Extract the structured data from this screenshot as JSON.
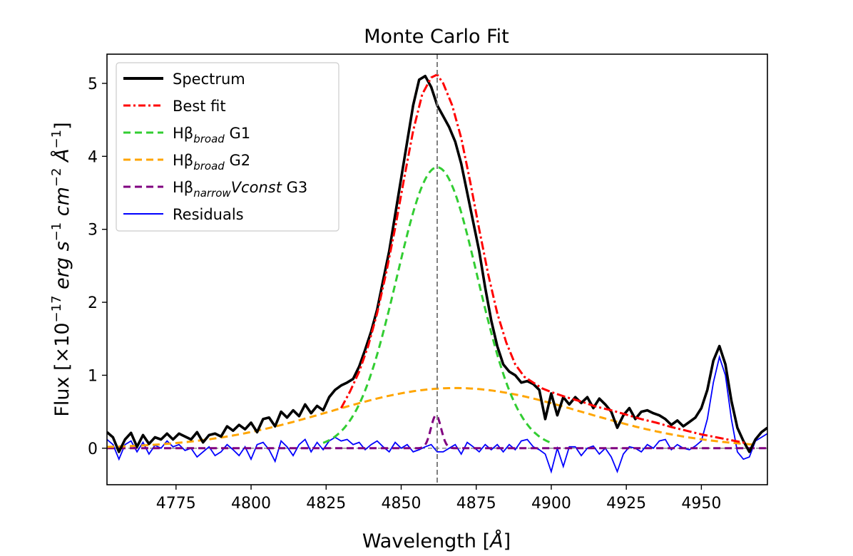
{
  "chart_data": {
    "type": "line",
    "title": "Monte Carlo Fit",
    "xlabel": "Wavelength [Å]",
    "ylabel": "Flux [×10⁻¹⁷ erg s⁻¹ cm⁻² Å⁻¹]",
    "xlim": [
      4752,
      4972
    ],
    "ylim": [
      -0.5,
      5.4
    ],
    "xticks": [
      4775,
      4800,
      4825,
      4850,
      4875,
      4900,
      4925,
      4950
    ],
    "yticks": [
      0,
      1,
      2,
      3,
      4,
      5
    ],
    "vline_x": 4862,
    "legend_position": "upper left",
    "legend": [
      {
        "id": "spectrum",
        "label": "Spectrum"
      },
      {
        "id": "best_fit",
        "label": "Best fit"
      },
      {
        "id": "g1",
        "label": "Hβ",
        "sub": "broad",
        "suffix": " G1"
      },
      {
        "id": "g2",
        "label": "Hβ",
        "sub": "broad",
        "suffix": " G2"
      },
      {
        "id": "g3",
        "label": "Hβ",
        "sub": "narrow",
        "ital": "Vconst",
        "suffix": " G3"
      },
      {
        "id": "residuals",
        "label": "Residuals"
      }
    ],
    "colors": {
      "spectrum": "#000000",
      "best_fit": "#ff0000",
      "g1": "#32cd32",
      "g2": "#ffa500",
      "g3": "#800080",
      "residuals": "#0000ff",
      "vline": "#808080",
      "zero_line": "#808080"
    },
    "spectrum": {
      "x": [
        4752,
        4754,
        4756,
        4758,
        4760,
        4762,
        4764,
        4766,
        4768,
        4770,
        4772,
        4774,
        4776,
        4778,
        4780,
        4782,
        4784,
        4786,
        4788,
        4790,
        4792,
        4794,
        4796,
        4798,
        4800,
        4802,
        4804,
        4806,
        4808,
        4810,
        4812,
        4814,
        4816,
        4818,
        4820,
        4822,
        4824,
        4826,
        4828,
        4830,
        4832,
        4834,
        4836,
        4838,
        4840,
        4842,
        4844,
        4846,
        4848,
        4850,
        4852,
        4854,
        4856,
        4858,
        4860,
        4862,
        4864,
        4866,
        4868,
        4870,
        4872,
        4874,
        4876,
        4878,
        4880,
        4882,
        4884,
        4886,
        4888,
        4890,
        4892,
        4894,
        4896,
        4898,
        4900,
        4902,
        4904,
        4906,
        4908,
        4910,
        4912,
        4914,
        4916,
        4918,
        4920,
        4922,
        4924,
        4926,
        4928,
        4930,
        4932,
        4934,
        4936,
        4938,
        4940,
        4942,
        4944,
        4946,
        4948,
        4950,
        4952,
        4954,
        4956,
        4958,
        4960,
        4962,
        4964,
        4966,
        4968,
        4970,
        4972
      ],
      "y": [
        0.22,
        0.15,
        -0.05,
        0.12,
        0.21,
        0.02,
        0.18,
        0.06,
        0.15,
        0.12,
        0.2,
        0.12,
        0.2,
        0.16,
        0.12,
        0.22,
        0.08,
        0.18,
        0.2,
        0.16,
        0.3,
        0.24,
        0.32,
        0.26,
        0.35,
        0.22,
        0.4,
        0.42,
        0.3,
        0.5,
        0.42,
        0.52,
        0.44,
        0.6,
        0.48,
        0.58,
        0.52,
        0.7,
        0.8,
        0.86,
        0.9,
        0.95,
        1.12,
        1.35,
        1.6,
        1.9,
        2.3,
        2.7,
        3.2,
        3.7,
        4.2,
        4.7,
        5.05,
        5.1,
        4.95,
        4.7,
        4.55,
        4.4,
        4.2,
        3.9,
        3.5,
        3.1,
        2.7,
        2.2,
        1.75,
        1.4,
        1.15,
        1.05,
        1.0,
        0.9,
        0.92,
        0.88,
        0.8,
        0.4,
        0.75,
        0.45,
        0.7,
        0.6,
        0.7,
        0.62,
        0.7,
        0.55,
        0.68,
        0.6,
        0.5,
        0.28,
        0.45,
        0.55,
        0.4,
        0.5,
        0.52,
        0.48,
        0.45,
        0.4,
        0.32,
        0.38,
        0.3,
        0.36,
        0.42,
        0.55,
        0.8,
        1.2,
        1.4,
        1.15,
        0.65,
        0.28,
        0.1,
        -0.05,
        0.12,
        0.22,
        0.28
      ]
    },
    "best_fit": {
      "x": [
        4830,
        4833,
        4836,
        4839,
        4842,
        4845,
        4848,
        4851,
        4854,
        4857,
        4860,
        4862,
        4864,
        4867,
        4870,
        4873,
        4876,
        4879,
        4882,
        4885,
        4888,
        4891,
        4894,
        4897,
        4900,
        4905,
        4910,
        4915,
        4920,
        4925,
        4930,
        4935,
        4940,
        4945,
        4950,
        4955,
        4960,
        4965
      ],
      "y": [
        0.55,
        0.78,
        1.05,
        1.4,
        1.85,
        2.4,
        3.02,
        3.7,
        4.35,
        4.85,
        5.08,
        5.12,
        5.0,
        4.7,
        4.25,
        3.65,
        3.0,
        2.38,
        1.85,
        1.45,
        1.15,
        0.98,
        0.9,
        0.82,
        0.77,
        0.7,
        0.64,
        0.57,
        0.52,
        0.46,
        0.4,
        0.35,
        0.29,
        0.24,
        0.19,
        0.15,
        0.11,
        0.07
      ]
    },
    "g1": {
      "amplitude": 3.85,
      "center": 4862,
      "sigma": 13.5,
      "x_range": [
        4824,
        4900
      ]
    },
    "g2": {
      "amplitude": 0.825,
      "center": 4868,
      "sigma": 42,
      "x_range": [
        4752,
        4968
      ]
    },
    "g3": {
      "amplitude": 0.45,
      "center": 4861.6,
      "sigma": 1.7,
      "x_range": [
        4752,
        4972
      ]
    },
    "residuals": {
      "x": [
        4752,
        4754,
        4756,
        4758,
        4760,
        4762,
        4764,
        4766,
        4768,
        4770,
        4772,
        4774,
        4776,
        4778,
        4780,
        4782,
        4784,
        4786,
        4788,
        4790,
        4792,
        4794,
        4796,
        4798,
        4800,
        4802,
        4804,
        4806,
        4808,
        4810,
        4812,
        4814,
        4816,
        4818,
        4820,
        4822,
        4824,
        4826,
        4828,
        4830,
        4832,
        4834,
        4836,
        4838,
        4840,
        4842,
        4844,
        4846,
        4848,
        4850,
        4852,
        4854,
        4856,
        4858,
        4860,
        4862,
        4864,
        4866,
        4868,
        4870,
        4872,
        4874,
        4876,
        4878,
        4880,
        4882,
        4884,
        4886,
        4888,
        4890,
        4892,
        4894,
        4896,
        4898,
        4900,
        4902,
        4904,
        4906,
        4908,
        4910,
        4912,
        4914,
        4916,
        4918,
        4920,
        4922,
        4924,
        4926,
        4928,
        4930,
        4932,
        4934,
        4936,
        4938,
        4940,
        4942,
        4944,
        4946,
        4948,
        4950,
        4952,
        4954,
        4956,
        4958,
        4960,
        4962,
        4964,
        4966,
        4968,
        4970,
        4972
      ],
      "y": [
        0.12,
        0.05,
        -0.15,
        0.05,
        0.1,
        -0.05,
        0.08,
        -0.08,
        0.04,
        0.0,
        0.1,
        0.02,
        0.05,
        -0.03,
        0.0,
        -0.12,
        -0.05,
        0.02,
        -0.1,
        -0.05,
        0.05,
        -0.02,
        -0.1,
        0.02,
        -0.15,
        0.05,
        0.08,
        -0.02,
        -0.18,
        0.1,
        0.02,
        -0.1,
        0.05,
        0.12,
        -0.05,
        0.08,
        -0.02,
        0.1,
        0.15,
        0.1,
        0.12,
        0.05,
        0.08,
        -0.02,
        0.05,
        0.1,
        0.02,
        -0.05,
        0.08,
        0.0,
        0.05,
        -0.05,
        -0.02,
        0.02,
        0.05,
        -0.05,
        -0.05,
        0.0,
        0.05,
        -0.08,
        0.08,
        0.02,
        -0.05,
        0.05,
        -0.02,
        0.05,
        -0.05,
        0.05,
        -0.02,
        0.1,
        0.12,
        0.02,
        -0.02,
        -0.08,
        -0.32,
        0.0,
        -0.25,
        0.02,
        0.02,
        -0.1,
        0.0,
        0.03,
        -0.08,
        0.0,
        -0.12,
        -0.32,
        -0.08,
        0.02,
        0.0,
        -0.05,
        0.05,
        0.0,
        0.1,
        0.12,
        -0.02,
        0.05,
        0.0,
        -0.02,
        0.03,
        0.1,
        0.4,
        0.9,
        1.25,
        1.0,
        0.4,
        -0.05,
        -0.15,
        -0.12,
        0.1,
        0.15,
        0.2
      ]
    }
  }
}
